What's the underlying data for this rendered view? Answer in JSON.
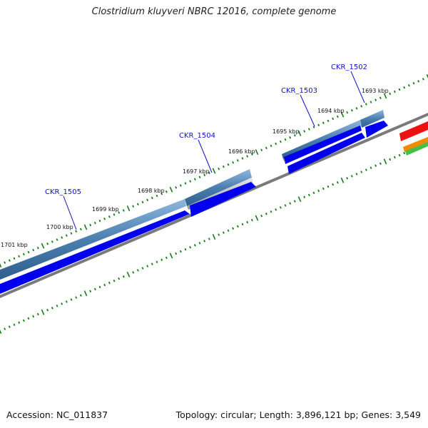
{
  "title": "Clostridium kluyveri NBRC 12016, complete genome",
  "footer": {
    "accession": "Accession: NC_011837",
    "summary": "Topology: circular; Length: 3,896,121 bp; Genes: 3,549"
  },
  "scale": {
    "tick_labels": [
      "1701 kbp",
      "1700 kbp",
      "1699 kbp",
      "1698 kbp",
      "1697 kbp",
      "1696 kbp",
      "1695 kbp",
      "1694 kbp",
      "1693 kbp"
    ]
  },
  "genes": [
    "CKR_1505",
    "CKR_1504",
    "CKR_1503",
    "CKR_1502"
  ],
  "colors": {
    "gene_bar": "#4a7fb0",
    "cds_bar": "#0000ee",
    "backbone": "#777777",
    "tick": "#1a7a1a",
    "label": "#1010cc",
    "feature_red": "#ee1111",
    "feature_orange": "#f08a00",
    "feature_green": "#44c044"
  }
}
